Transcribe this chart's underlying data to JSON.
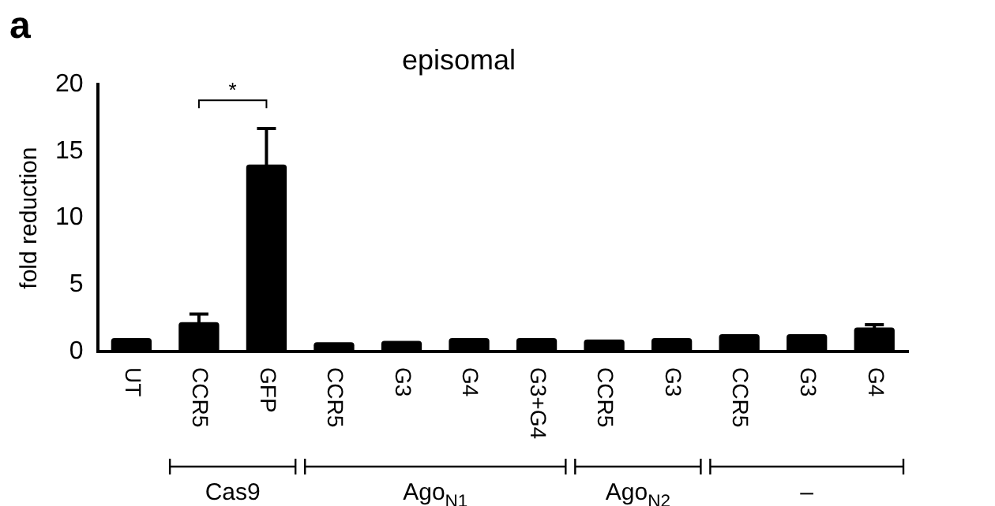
{
  "chart_data": {
    "type": "bar",
    "title": "episomal",
    "ylabel": "fold reduction",
    "categories": [
      "UT",
      "CCR5",
      "GFP",
      "CCR5",
      "G3",
      "G4",
      "G3+G4",
      "CCR5",
      "G3",
      "CCR5",
      "G3",
      "G4"
    ],
    "values": [
      1.0,
      2.2,
      14.0,
      0.7,
      0.8,
      1.0,
      1.0,
      0.9,
      1.0,
      1.3,
      1.3,
      1.8
    ],
    "errors": [
      null,
      0.6,
      2.7,
      null,
      null,
      null,
      null,
      null,
      null,
      null,
      null,
      0.2
    ],
    "color": "#000000",
    "ylim": [
      0,
      20
    ],
    "yticks": [
      0,
      5,
      10,
      15,
      20
    ],
    "grid": false,
    "legend": false,
    "annotations": [
      "a",
      "*",
      "Cas9",
      "Ago$_{N1}$",
      "Ago$_{N2}$",
      "–"
    ]
  }
}
